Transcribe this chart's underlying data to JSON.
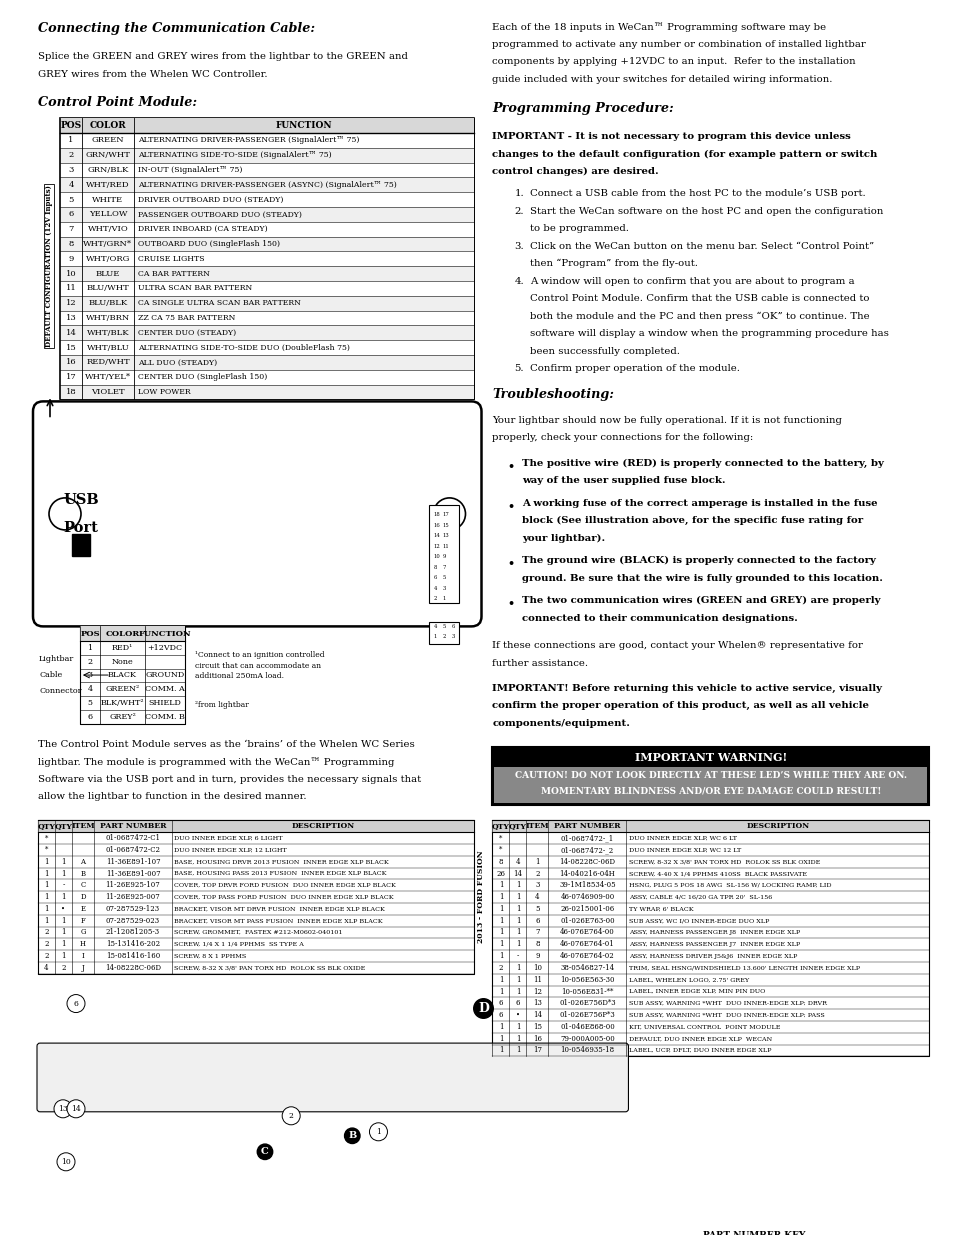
{
  "bg_color": "#ffffff",
  "page_width": 9.54,
  "page_height": 12.35,
  "dpi": 100,
  "sections": {
    "connecting_title": "Connecting the Communication Cable:",
    "connecting_body1": "Splice the GREEN and GREY wires from the lightbar to the GREEN and",
    "connecting_body2": "GREY wires from the Whelen WC Controller.",
    "control_point_title": "Control Point Module:",
    "programming_body": [
      "Each of the 18 inputs in WeCan™ Programming software may be",
      "programmed to activate any number or combination of installed lightbar",
      "components by applying +12VDC to an input.  Refer to the installation",
      "guide included with your switches for detailed wiring information."
    ],
    "programming_title": "Programming Procedure:",
    "important_line1": "IMPORTANT - It is not necessary to program this device unless",
    "important_line2": "changes to the default configuration (for example pattern or switch",
    "important_line3": "control changes) are desired.",
    "steps": [
      [
        "1.",
        "Connect a USB cable from the host PC to the module’s USB port."
      ],
      [
        "2.",
        "Start the WeCan software on the host PC and open the configuration"
      ],
      [
        "",
        "to be programmed."
      ],
      [
        "3.",
        "Click on the WeCan button on the menu bar. Select “Control Point”"
      ],
      [
        "",
        "then “Program” from the fly-out."
      ],
      [
        "4.",
        "A window will open to confirm that you are about to program a"
      ],
      [
        "",
        "Control Point Module. Confirm that the USB cable is connected to"
      ],
      [
        "",
        "both the module and the PC and then press “OK” to continue. The"
      ],
      [
        "",
        "software will display a window when the programming procedure has"
      ],
      [
        "",
        "been successfully completed."
      ],
      [
        "5.",
        "Confirm proper operation of the module."
      ]
    ],
    "troubleshooting_title": "Troubleshooting:",
    "troubleshooting_body": [
      "Your lightbar should now be fully operational. If it is not functioning",
      "properly, check your connections for the following:"
    ],
    "bullets": [
      [
        "The positive wire (RED) is properly connected to the battery, by",
        "way of the user supplied fuse block."
      ],
      [
        "A working fuse of the correct amperage is installed in the fuse",
        "block (See illustration above, for the specific fuse rating for",
        "your lightbar)."
      ],
      [
        "The ground wire (BLACK) is properly connected to the factory",
        "ground. Be sure that the wire is fully grounded to this location."
      ],
      [
        "The two communication wires (GREEN and GREY) are properly",
        "connected to their communication designations."
      ]
    ],
    "footer1": "If these connections are good, contact your Whelen® representative for",
    "footer2": "further assistance.",
    "important2_line1": "IMPORTANT! Before returning this vehicle to active service, visually",
    "important2_line2": "confirm the proper operation of this product, as well as all vehicle",
    "important2_line3": "components/equipment.",
    "warning_title": "IMPORTANT WARNING!",
    "warning_line1": "CAUTION! DO NOT LOOK DIRECTLY AT THESE LED’S WHILE THEY ARE ON.",
    "warning_line2": "MOMENTARY BLINDNESS AND/OR EYE DAMAGE COULD RESULT!"
  },
  "table1_rows": [
    [
      "1",
      "GREEN",
      "ALTERNATING DRIVER-PASSENGER (SignalAlert™ 75)"
    ],
    [
      "2",
      "GRN/WHT",
      "ALTERNATING SIDE-TO-SIDE (SignalAlert™ 75)"
    ],
    [
      "3",
      "GRN/BLK",
      "IN-OUT (SignalAlert™ 75)"
    ],
    [
      "4",
      "WHT/RED",
      "ALTERNATING DRIVER-PASSENGER (ASYNC) (SignalAlert™ 75)"
    ],
    [
      "5",
      "WHITE",
      "DRIVER OUTBOARD DUO (STEADY)"
    ],
    [
      "6",
      "YELLOW",
      "PASSENGER OUTBOARD DUO (STEADY)"
    ],
    [
      "7",
      "WHT/VIO",
      "DRIVER INBOARD (CA STEADY)"
    ],
    [
      "8",
      "WHT/GRN*",
      "OUTBOARD DUO (SingleFlash 150)"
    ],
    [
      "9",
      "WHT/ORG",
      "CRUISE LIGHTS"
    ],
    [
      "10",
      "BLUE",
      "CA BAR PATTERN"
    ],
    [
      "11",
      "BLU/WHT",
      "ULTRA SCAN BAR PATTERN"
    ],
    [
      "12",
      "BLU/BLK",
      "CA SINGLE ULTRA SCAN BAR PATTERN"
    ],
    [
      "13",
      "WHT/BRN",
      "ZZ CA 75 BAR PATTERN"
    ],
    [
      "14",
      "WHT/BLK",
      "CENTER DUO (STEADY)"
    ],
    [
      "15",
      "WHT/BLU",
      "ALTERNATING SIDE-TO-SIDE DUO (DoubleFlash 75)"
    ],
    [
      "16",
      "RED/WHT",
      "ALL DUO (STEADY)"
    ],
    [
      "17",
      "WHT/YEL*",
      "CENTER DUO (SingleFlash 150)"
    ],
    [
      "18",
      "VIOLET",
      "LOW POWER"
    ]
  ],
  "table2_rows": [
    [
      "1",
      "RED¹",
      "+12VDC"
    ],
    [
      "2",
      "None",
      ""
    ],
    [
      "3",
      "BLACK",
      "GROUND"
    ],
    [
      "4",
      "GREEN²",
      "COMM. A"
    ],
    [
      "5",
      "BLK/WHT²",
      "SHIELD"
    ],
    [
      "6",
      "GREY²",
      "COMM. B"
    ]
  ],
  "control_point_body": [
    "The Control Point Module serves as the ‘brains’ of the Whelen WC Series",
    "lightbar. The module is programmed with the WeCan™ Programming",
    "Software via the USB port and in turn, provides the necessary signals that",
    "allow the lightbar to function in the desired manner."
  ],
  "parts_left": [
    [
      "*",
      "",
      "",
      "01-0687472-C1",
      "DUO INNER EDGE XLP, 6 LIGHT"
    ],
    [
      "*",
      "",
      "",
      "01-0687472-C2",
      "DUO INNER EDGE XLP, 12 LIGHT"
    ],
    [
      "1",
      "1",
      "A",
      "11-36E891-107",
      "BASE, HOUSING DRVR 2013 FUSION  INNER EDGE XLP BLACK"
    ],
    [
      "1",
      "1",
      "B",
      "11-36E891-007",
      "BASE, HOUSING PASS 2013 FUSION  INNER EDGE XLP BLACK"
    ],
    [
      "1",
      "-",
      "C",
      "11-26E925-107",
      "COVER, TOP DRVR FORD FUSION  DUO INNER EDGE XLP BLACK"
    ],
    [
      "1",
      "1",
      "D",
      "11-26E925-007",
      "COVER, TOP PASS FORD FUSION  DUO INNER EDGE XLP BLACK"
    ],
    [
      "1",
      "•",
      "E",
      "07-287529-123",
      "BRACKET, VISOR MT DRVR FUSION  INNER EDGE XLP BLACK"
    ],
    [
      "1",
      "1",
      "F",
      "07-287529-023",
      "BRACKET, VISOR MT PASS FUSION  INNER EDGE XLP BLACK"
    ],
    [
      "2",
      "1",
      "G",
      "21-12081205-3",
      "SCREW, GROMMET,  FASTEX #212-M0602-040101"
    ],
    [
      "2",
      "1",
      "H",
      "15-131416-202",
      "SCREW, 1/4 X 1 1/4 PPHMS  SS TYPE A"
    ],
    [
      "2",
      "1",
      "I",
      "15-081416-160",
      "SCREW, 8 X 1 PPHMS"
    ],
    [
      "4",
      "2",
      "J",
      "14-08228C-06D",
      "SCREW, 8-32 X 3/8' PAN TORX HD  ROLOK SS BLK OXIDE"
    ]
  ],
  "parts_right": [
    [
      "*",
      "",
      "",
      "01-0687472-_1",
      "DUO INNER EDGE XLP, WC 6 LT"
    ],
    [
      "*",
      "",
      "",
      "01-0687472-_2",
      "DUO INNER EDGE XLP, WC 12 LT"
    ],
    [
      "8",
      "4",
      "1",
      "14-08228C-06D",
      "SCREW, 8-32 X 3/8' PAN TORX HD  ROLOK SS BLK OXIDE"
    ],
    [
      "26",
      "14",
      "2",
      "14-040216-04H",
      "SCREW, 4-40 X 1/4 PPHMS 410SS  BLACK PASSIVATE"
    ],
    [
      "1",
      "1",
      "3",
      "39-1M18534-05",
      "HSNG, PLUG 5 POS 18 AWG  SL-156 W/ LOCKING RAMP, LID"
    ],
    [
      "1",
      "1",
      "4",
      "46-0746909-00",
      "ASSY, CABLE 4/C 16/20 GA TPR 20'  SL-156"
    ],
    [
      "1",
      "1",
      "5",
      "26-0215001-06",
      "TY WRAP, 6' BLACK"
    ],
    [
      "1",
      "1",
      "6",
      "01-026E763-00",
      "SUB ASSY, WC I/O INNER-EDGE DUO XLP"
    ],
    [
      "1",
      "1",
      "7",
      "46-076E764-00",
      "ASSY, HARNESS PASSENGER J8  INNER EDGE XLP"
    ],
    [
      "1",
      "1",
      "8",
      "46-076E764-01",
      "ASSY, HARNESS PASSENGER J7  INNER EDGE XLP"
    ],
    [
      "1",
      "-",
      "9",
      "46-076E764-02",
      "ASSY, HARNESS DRIVER J5&J6  INNER EDGE XLP"
    ],
    [
      "2",
      "1",
      "10",
      "38-0546827-14",
      "TRIM, SEAL HSNG/WINDSHIELD 13.600' LENGTH INNER EDGE XLP"
    ],
    [
      "1",
      "1",
      "11",
      "10-056E563-30",
      "LABEL, WHELEN LOGO, 2.75' GREY"
    ],
    [
      "1",
      "1",
      "12",
      "10-056E831-**",
      "LABEL, INNER EDGE XLP, MIN PIN DUO"
    ],
    [
      "6",
      "6",
      "13",
      "01-026E756D*3",
      "SUB ASSY, WARNING *WHT  DUO INNER-EDGE XLP; DRVR"
    ],
    [
      "6",
      "•",
      "14",
      "01-026E756P*3",
      "SUB ASSY, WARNING *WHT  DUO INNER-EDGE XLP; PASS"
    ],
    [
      "1",
      "1",
      "15",
      "01-046E868-00",
      "KIT, UNIVERSAL CONTROL  POINT MODULE"
    ],
    [
      "1",
      "1",
      "16",
      "79-000A005-00",
      "DEFAULT, DUO INNER EDGE XLP  WECAN"
    ],
    [
      "1",
      "1",
      "17",
      "10-0546935-18",
      "LABEL, UCP, DFLT, DUO INNER EDGE XLP"
    ]
  ]
}
